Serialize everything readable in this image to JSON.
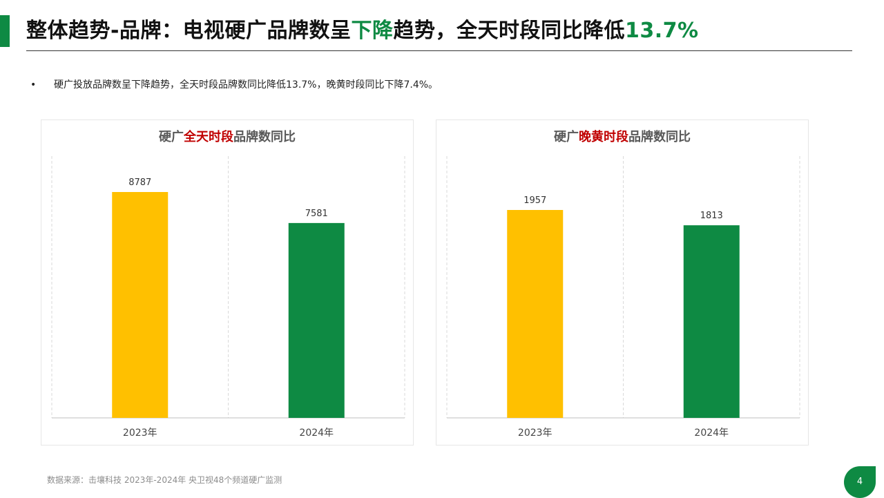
{
  "title": {
    "part1": "整体趋势-品牌：电视硬广品牌数呈",
    "highlight1": "下降",
    "part2": "趋势，全天时段同比降低",
    "highlight2": "13.7%"
  },
  "bullet": {
    "marker": "•",
    "text": "硬广投放品牌数呈下降趋势，全天时段品牌数同比降低13.7%，晚黄时段同比下降7.4%。"
  },
  "chart_data": [
    {
      "type": "bar",
      "title_prefix": "硬广",
      "title_highlight": "全天时段",
      "title_suffix": "品牌数同比",
      "categories": [
        "2023年",
        "2024年"
      ],
      "values": [
        8787,
        7581
      ],
      "colors": [
        "#ffc000",
        "#0e8a43"
      ],
      "grid": "vertical-dashed"
    },
    {
      "type": "bar",
      "title_prefix": "硬广",
      "title_highlight": "晚黄时段",
      "title_suffix": "品牌数同比",
      "categories": [
        "2023年",
        "2024年"
      ],
      "values": [
        1957,
        1813
      ],
      "colors": [
        "#ffc000",
        "#0e8a43"
      ],
      "grid": "vertical-dashed"
    }
  ],
  "footer": {
    "source": "数据来源：击壤科技  2023年-2024年 央卫视48个频道硬广监测"
  },
  "page": {
    "number": "4"
  },
  "colors": {
    "brand_green": "#0e8a43",
    "accent_yellow": "#ffc000",
    "highlight_red": "#c00000"
  }
}
